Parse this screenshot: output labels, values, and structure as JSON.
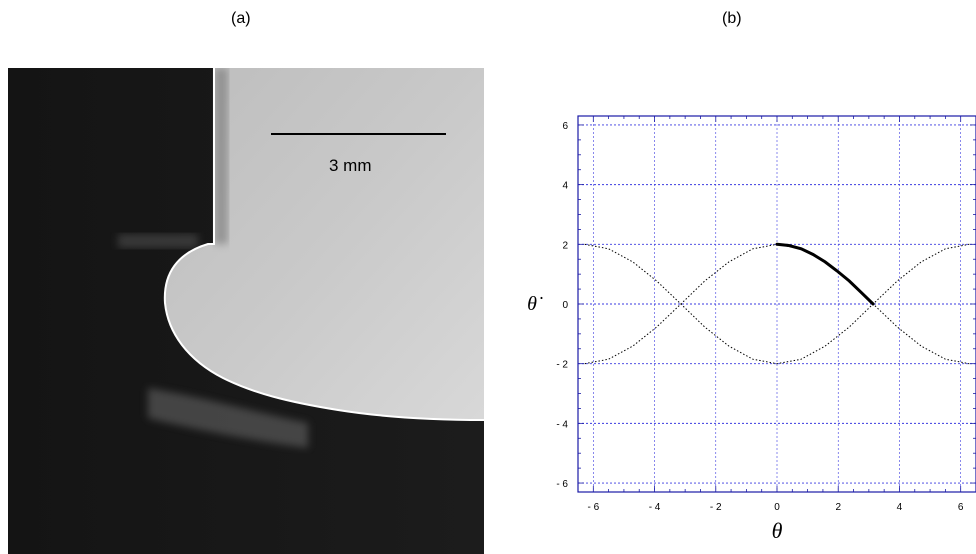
{
  "panels": {
    "a": {
      "label": "(a)",
      "scale_bar_label": "3 mm"
    },
    "b": {
      "label": "(b)"
    }
  },
  "chart_data": {
    "type": "line",
    "xlabel": "θ",
    "ylabel": "θ̇",
    "xlim": [
      -6.5,
      6.5
    ],
    "ylim": [
      -6.3,
      6.3
    ],
    "xticks": [
      -6,
      -4,
      -2,
      0,
      2,
      4,
      6
    ],
    "yticks": [
      -6,
      -4,
      -2,
      0,
      2,
      4,
      6
    ],
    "xtick_labels": [
      "- 6",
      "- 4",
      "- 2",
      "0",
      "2",
      "4",
      "6"
    ],
    "ytick_labels": [
      "- 6",
      "- 4",
      "- 2",
      "0",
      "2",
      "4",
      "6"
    ],
    "grid": true,
    "series": [
      {
        "style": "dotted",
        "color": "#000000",
        "description_points": "separatrix upper branch: y = 2·|cos(x/2)|",
        "x": [
          -6.28,
          -5.5,
          -4.71,
          -3.93,
          -3.14,
          -2.36,
          -1.57,
          -0.79,
          0,
          0.79,
          1.57,
          2.36,
          3.14,
          3.93,
          4.71,
          5.5,
          6.28
        ],
        "y": [
          2.0,
          1.85,
          1.41,
          0.77,
          0.0,
          0.77,
          1.41,
          1.85,
          2.0,
          1.85,
          1.41,
          0.77,
          0.0,
          0.77,
          1.41,
          1.85,
          2.0
        ]
      },
      {
        "style": "dotted",
        "color": "#000000",
        "x": [
          -6.28,
          -5.5,
          -4.71,
          -3.93,
          -3.14,
          -2.36,
          -1.57,
          -0.79,
          0,
          0.79,
          1.57,
          2.36,
          3.14,
          3.93,
          4.71,
          5.5,
          6.28
        ],
        "y": [
          -2.0,
          -1.85,
          -1.41,
          -0.77,
          0.0,
          -0.77,
          -1.41,
          -1.85,
          -2.0,
          -1.85,
          -1.41,
          -0.77,
          0.0,
          -0.77,
          -1.41,
          -1.85,
          -2.0
        ]
      },
      {
        "style": "solid-thick",
        "color": "#000000",
        "x": [
          0,
          0.39,
          0.79,
          1.18,
          1.57,
          1.96,
          2.36,
          2.75,
          3.14
        ],
        "y": [
          2.0,
          1.96,
          1.85,
          1.66,
          1.41,
          1.11,
          0.77,
          0.39,
          0.0
        ]
      }
    ]
  }
}
